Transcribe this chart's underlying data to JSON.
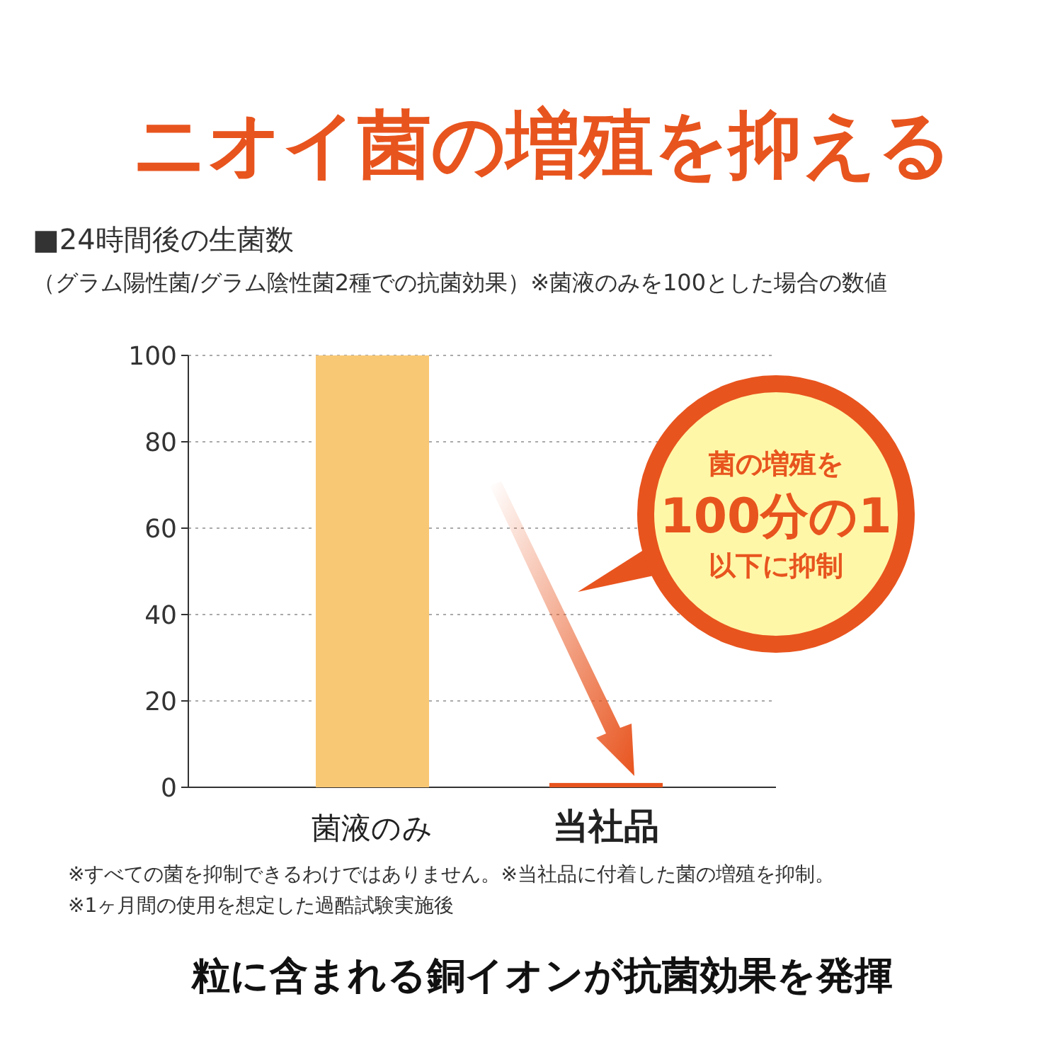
{
  "chart_data": {
    "type": "bar",
    "title": "ニオイ菌の増殖を抑える",
    "subtitle": "■24時間後の生菌数",
    "categories": [
      "菌液のみ",
      "当社品"
    ],
    "values": [
      100,
      1
    ],
    "colors": [
      "#f9c874",
      "#e8541e"
    ],
    "ylim": [
      0,
      100
    ],
    "yticks": [
      0,
      20,
      40,
      60,
      80,
      100
    ],
    "grid": "y",
    "annotations": [
      "（グラム陽性菌/グラム陰性菌2種での抗菌効果）※菌液のみを100とした場合の数値",
      "菌の増殖を",
      "100分の1",
      "以下に抑制",
      "※すべての菌を抑制できるわけではありません。※当社品に付着した菌の増殖を抑制。",
      "※1ヶ月間の使用を想定した過酷試験実施後",
      "粒に含まれる銅イオンが抗菌効果を発揮"
    ]
  }
}
